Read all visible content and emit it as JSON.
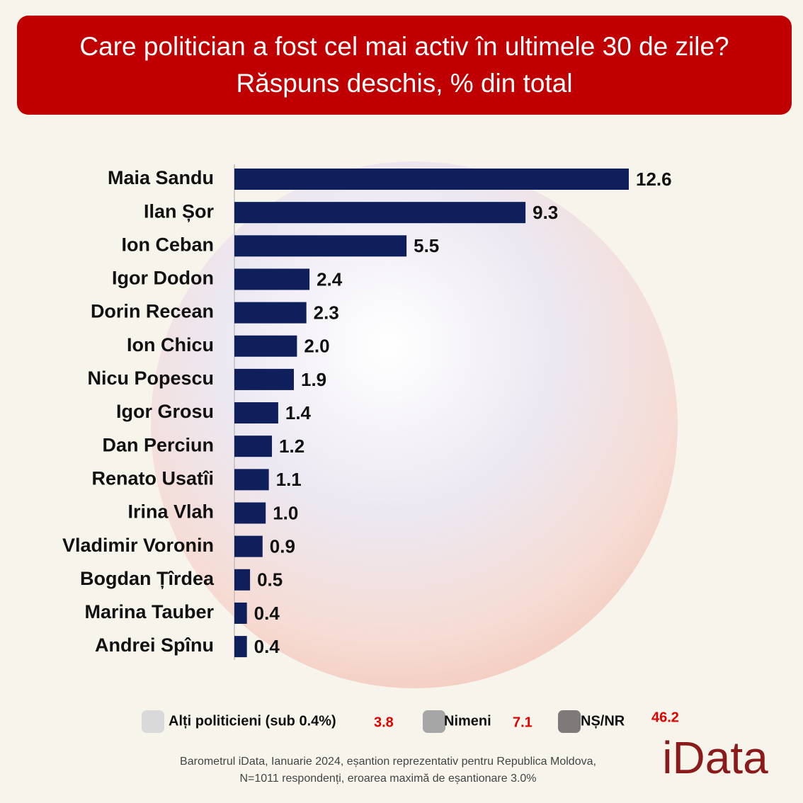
{
  "chart_data": {
    "type": "hbar",
    "title": "Care politician a fost cel mai activ în ultimele 30 de zile? Răspuns deschis, % din total",
    "categories": [
      "Maia Sandu",
      "Ilan Șor",
      "Ion Ceban",
      "Igor Dodon",
      "Dorin Recean",
      "Ion Chicu",
      "Nicu Popescu",
      "Igor Grosu",
      "Dan Perciun",
      "Renato Usatîi",
      "Irina Vlah",
      "Vladimir Voronin",
      "Bogdan Țîrdea",
      "Marina Tauber",
      "Andrei Spînu"
    ],
    "values": [
      12.6,
      9.3,
      5.5,
      2.4,
      2.3,
      2.0,
      1.9,
      1.4,
      1.2,
      1.1,
      1.0,
      0.9,
      0.5,
      0.4,
      0.4
    ],
    "value_labels": [
      "12.6",
      "9.3",
      "5.5",
      "2.4",
      "2.3",
      "2.0",
      "1.9",
      "1.4",
      "1.2",
      "1.1",
      "1.0",
      "0.9",
      "0.5",
      "0.4",
      "0.4"
    ],
    "color": "#0e1f5c",
    "xlim": [
      0,
      12.6
    ],
    "extra": [
      {
        "label": "Alți politicieni (sub 0.4%)",
        "value": 3.8,
        "color": "#d9d9d9"
      },
      {
        "label": "Nimeni",
        "value": 7.1,
        "color": "#a6a6a6"
      },
      {
        "label": "NȘ/NR",
        "value": 46.2,
        "color": "#7f7a7a"
      }
    ],
    "note": [
      "Barometrul iData, Ianuarie 2024, eșantion reprezentativ pentru Republica Moldova,",
      "N=1011 respondenți, eroarea maximă de eșantionare 3.0%"
    ],
    "logo": "iData"
  }
}
